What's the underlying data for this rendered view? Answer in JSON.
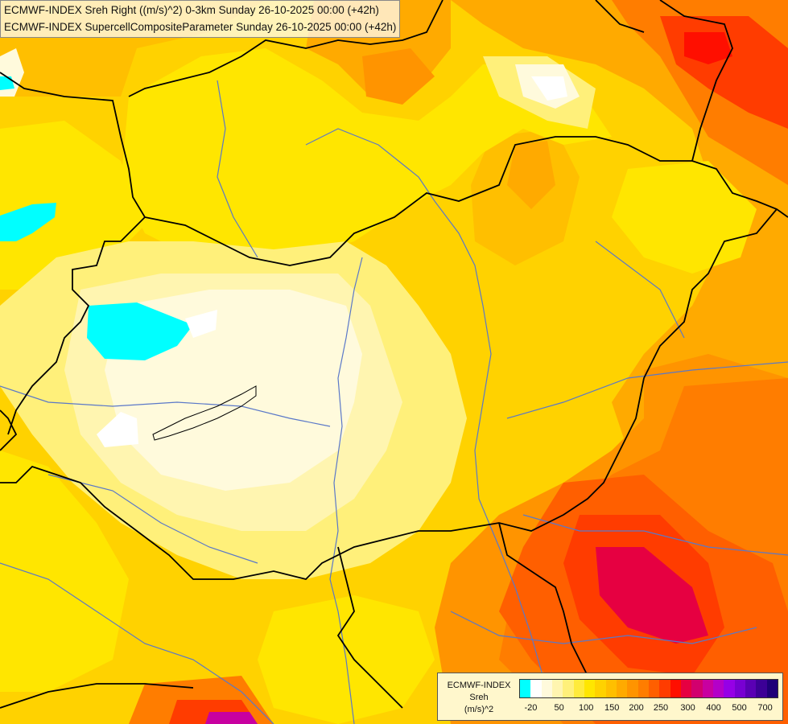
{
  "header": {
    "line1": "ECMWF-INDEX Sreh Right ((m/s)^2) 0-3km Sunday 26-10-2025 00:00 (+42h)",
    "line2": "ECMWF-INDEX SupercellCompositeParameter Sunday 26-10-2025 00:00 (+42h)"
  },
  "legend": {
    "title": "ECMWF-INDEX",
    "variable": "Sreh",
    "unit": "(m/s)^2",
    "tick_labels": [
      "-20",
      "50",
      "100",
      "150",
      "200",
      "250",
      "300",
      "400",
      "500",
      "700"
    ],
    "colors": [
      "#00ffff",
      "#ffffff",
      "#fffadc",
      "#fff5b0",
      "#fff07a",
      "#ffeb3c",
      "#ffe600",
      "#ffd200",
      "#ffbf00",
      "#ffaa00",
      "#ff9400",
      "#ff7d00",
      "#ff5f00",
      "#ff3c00",
      "#ff0f00",
      "#e60041",
      "#d2006e",
      "#c800a0",
      "#b400c8",
      "#9600e6",
      "#7800d2",
      "#5a00b4",
      "#3c0096",
      "#1e0078"
    ]
  },
  "map": {
    "background": "#ffd200",
    "border_color": "#000000",
    "river_color": "#5a78c8"
  }
}
